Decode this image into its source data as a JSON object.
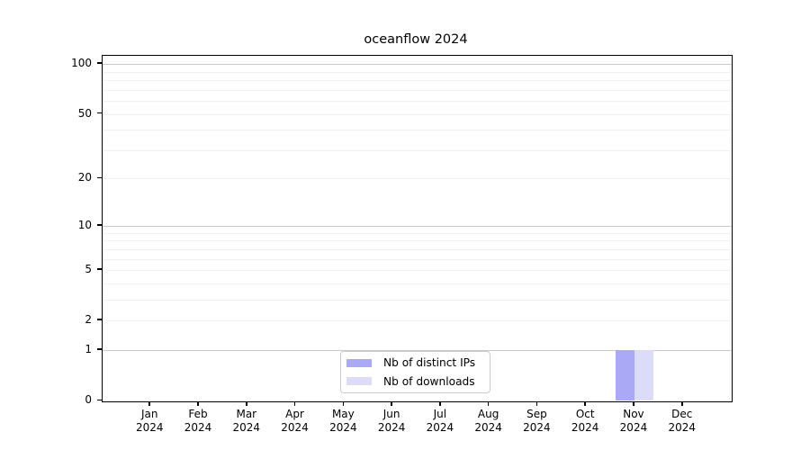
{
  "title": "oceanflow 2024",
  "colors": {
    "ips_bar": "#a9a9f6",
    "downloads_bar": "#dcdcf9",
    "grid_major": "#c9c9c9",
    "grid_minor": "#f0f0f0",
    "axis": "#000000",
    "legend_border": "#cccccc"
  },
  "legend": {
    "items": [
      {
        "label": "Nb of distinct IPs",
        "color_key": "ips_bar"
      },
      {
        "label": "Nb of downloads",
        "color_key": "downloads_bar"
      }
    ]
  },
  "axes": {
    "y_tick_labels": [
      "100",
      "50",
      "20",
      "10",
      "5",
      "2",
      "1",
      "0"
    ],
    "x_year": "2024",
    "x_months": [
      "Jan",
      "Feb",
      "Mar",
      "Apr",
      "May",
      "Jun",
      "Jul",
      "Aug",
      "Sep",
      "Oct",
      "Nov",
      "Dec"
    ]
  },
  "chart_data": {
    "type": "bar",
    "title": "oceanflow 2024",
    "categories": [
      "Jan 2024",
      "Feb 2024",
      "Mar 2024",
      "Apr 2024",
      "May 2024",
      "Jun 2024",
      "Jul 2024",
      "Aug 2024",
      "Sep 2024",
      "Oct 2024",
      "Nov 2024",
      "Dec 2024"
    ],
    "series": [
      {
        "name": "Nb of distinct IPs",
        "color": "#a9a9f6",
        "values": [
          0,
          0,
          0,
          0,
          0,
          0,
          0,
          0,
          0,
          0,
          1,
          0
        ]
      },
      {
        "name": "Nb of downloads",
        "color": "#dcdcf9",
        "values": [
          0,
          0,
          0,
          0,
          0,
          0,
          0,
          0,
          0,
          0,
          1,
          0
        ]
      }
    ],
    "xlabel": "",
    "ylabel": "",
    "yscale": "log1p",
    "y_ticks": [
      0,
      1,
      2,
      5,
      10,
      20,
      50,
      100
    ],
    "ylim": [
      0,
      112
    ],
    "grid": {
      "major": [
        1,
        10,
        100
      ],
      "minor": [
        2,
        3,
        4,
        5,
        6,
        7,
        8,
        9,
        20,
        30,
        40,
        50,
        60,
        70,
        80,
        90
      ]
    },
    "legend_position": "lower center"
  }
}
